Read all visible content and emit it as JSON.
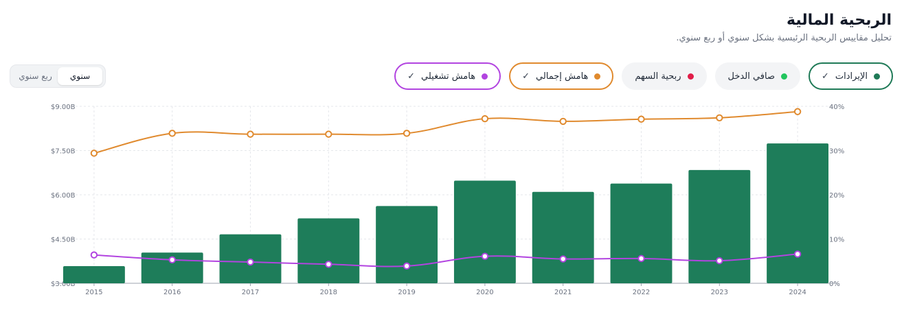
{
  "header": {
    "title": "الربحية المالية",
    "subtitle": "تحليل مقاييس الربحية الرئيسية بشكل سنوي أو ربع سنوي."
  },
  "period_toggle": {
    "options": [
      {
        "label": "سنوي",
        "active": true
      },
      {
        "label": "ربع سنوي",
        "active": false
      }
    ]
  },
  "metrics": [
    {
      "id": "revenue",
      "label": "الإيرادات",
      "color": "#1f7a57",
      "active": true
    },
    {
      "id": "net_income",
      "label": "صافي الدخل",
      "color": "#22c55e",
      "active": false
    },
    {
      "id": "eps",
      "label": "ربحية السهم",
      "color": "#e11d48",
      "active": false
    },
    {
      "id": "gross_margin",
      "label": "هامش إجمالي",
      "color": "#e08a2e",
      "active": true
    },
    {
      "id": "operating_margin",
      "label": "هامش تشغيلي",
      "color": "#b244e0",
      "active": true
    }
  ],
  "chart_data": {
    "type": "bar",
    "categories": [
      "2015",
      "2016",
      "2017",
      "2018",
      "2019",
      "2020",
      "2021",
      "2022",
      "2023",
      "2024"
    ],
    "left_axis": {
      "ticks": [
        "$3.00B",
        "$4.50B",
        "$6.00B",
        "$7.50B",
        "$9.00B"
      ],
      "range": [
        3.0,
        9.0
      ]
    },
    "right_axis": {
      "ticks": [
        "0%",
        "10%",
        "20%",
        "30%",
        "40%"
      ],
      "range": [
        0,
        40
      ]
    },
    "series": [
      {
        "name": "الإيرادات",
        "type": "bar",
        "axis": "left",
        "color": "#1e7d5a",
        "values": [
          3.58,
          4.04,
          4.66,
          5.2,
          5.62,
          6.48,
          6.1,
          6.38,
          6.84,
          7.74
        ]
      },
      {
        "name": "هامش إجمالي",
        "type": "line",
        "axis": "right",
        "color": "#e08a2e",
        "values": [
          29.4,
          33.9,
          33.7,
          33.7,
          33.9,
          37.2,
          36.6,
          37.1,
          37.4,
          38.8
        ]
      },
      {
        "name": "هامش تشغيلي",
        "type": "line",
        "axis": "right",
        "color": "#b244e0",
        "values": [
          6.4,
          5.3,
          4.8,
          4.3,
          3.9,
          6.1,
          5.5,
          5.6,
          5.1,
          6.6
        ]
      }
    ],
    "grid": true
  }
}
